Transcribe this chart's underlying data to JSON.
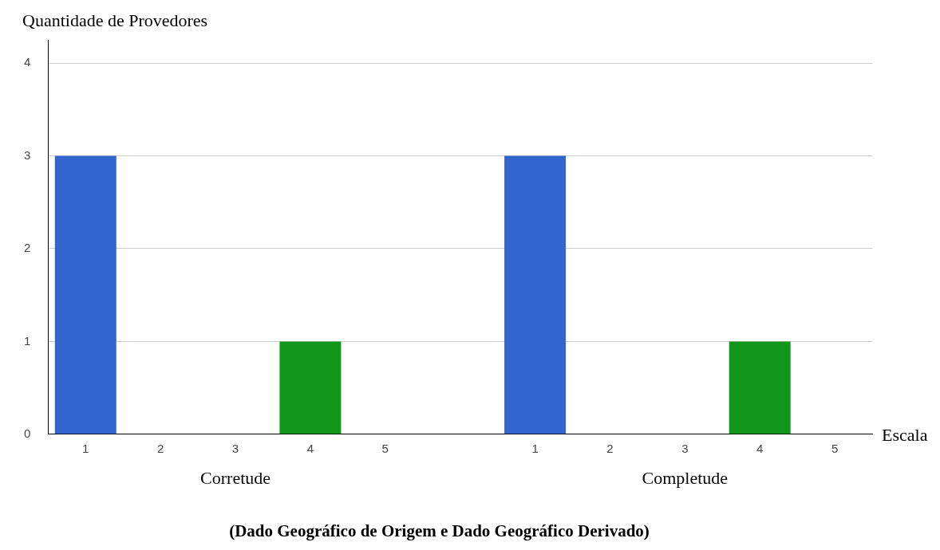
{
  "chart_data": {
    "type": "bar",
    "title": "(Dado Geográfico de Origem e Dado Geográfico Derivado)",
    "ylabel": "Quantidade de Provedores",
    "xlabel": "Escala",
    "categories": [
      "1",
      "2",
      "3",
      "4",
      "5",
      null,
      "1",
      "2",
      "3",
      "4",
      "5"
    ],
    "values": [
      3,
      0,
      0,
      1,
      0,
      null,
      3,
      0,
      0,
      1,
      0
    ],
    "colors": [
      "#3366cc",
      "#3366cc",
      "#3366cc",
      "#109618",
      "#3366cc",
      "#3366cc",
      "#3366cc",
      "#3366cc",
      "#3366cc",
      "#109618",
      "#3366cc"
    ],
    "ylim": [
      0,
      4.25
    ],
    "yticks": [
      0,
      1,
      2,
      3,
      4
    ],
    "grid": "y",
    "annotations": [
      "Corretude",
      "Completude"
    ]
  }
}
